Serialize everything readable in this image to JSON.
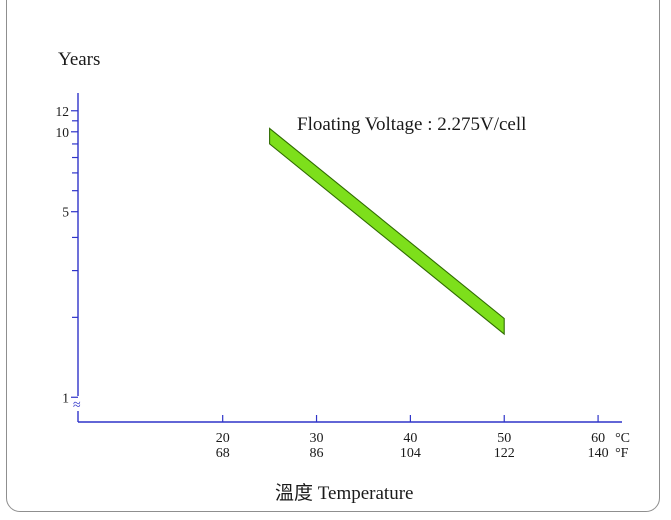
{
  "chart_data": {
    "type": "area",
    "title": "",
    "ylabel": "Years",
    "xlabel": "溫度 Temperature",
    "x_unit_c": "°C",
    "x_unit_f": "°F",
    "y_scale": "log",
    "ylim": [
      0.85,
      14
    ],
    "xlim_c": [
      0,
      65
    ],
    "y_ticks_labeled": [
      {
        "value": 1,
        "label": "1"
      },
      {
        "value": 5,
        "label": "5"
      },
      {
        "value": 10,
        "label": "10"
      },
      {
        "value": 12,
        "label": "12"
      }
    ],
    "y_ticks_minor": [
      2,
      3,
      4,
      6,
      7,
      8,
      9,
      11
    ],
    "x_ticks": [
      {
        "c": 20,
        "f": "68"
      },
      {
        "c": 30,
        "f": "86"
      },
      {
        "c": 40,
        "f": "104"
      },
      {
        "c": 50,
        "f": "122"
      },
      {
        "c": 60,
        "f": "140"
      }
    ],
    "axis_break_symbol": "≈",
    "annotation": "Floating Voltage : 2.275V/cell",
    "series": [
      {
        "upper": [
          {
            "x": 25,
            "y": 10.3
          },
          {
            "x": 50,
            "y": 1.98
          }
        ],
        "lower": [
          {
            "x": 25,
            "y": 9.0
          },
          {
            "x": 50,
            "y": 1.73
          }
        ]
      }
    ],
    "colors": {
      "axis": "#2f34c9",
      "band_fill": "#7ddf1b",
      "band_stroke": "#2f6b00",
      "text": "#1a1a1a"
    }
  }
}
